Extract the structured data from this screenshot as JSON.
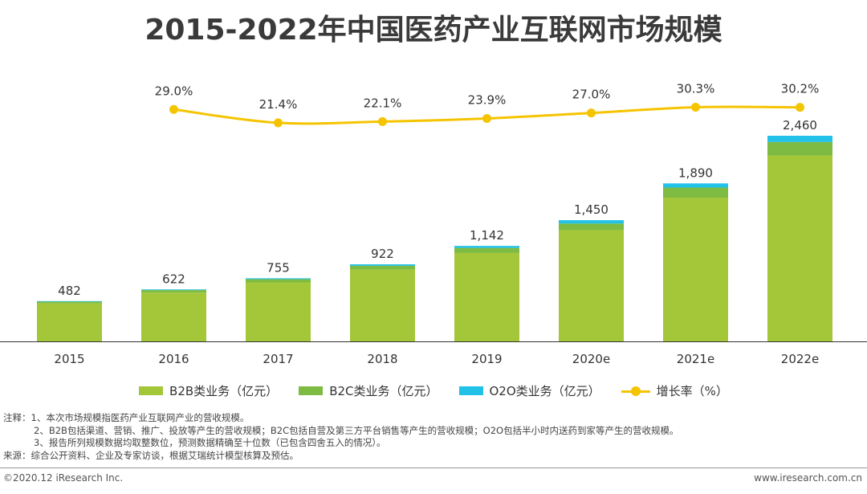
{
  "title": "2015-2022年中国医药产业互联网市场规模",
  "chart_data": {
    "type": "bar",
    "stacked": true,
    "categories": [
      "2015",
      "2016",
      "2017",
      "2018",
      "2019",
      "2020e",
      "2021e",
      "2022e"
    ],
    "series": [
      {
        "name": "B2B类业务（亿元）",
        "color": "#A4C639",
        "values": [
          455,
          584,
          706,
          858,
          1058,
          1330,
          1720,
          2225
        ]
      },
      {
        "name": "B2C类业务（亿元）",
        "color": "#7DBB42",
        "values": [
          20,
          30,
          38,
          46,
          60,
          80,
          120,
          160
        ]
      },
      {
        "name": "O2O类业务（亿元）",
        "color": "#22C1E8",
        "values": [
          7,
          8,
          11,
          18,
          24,
          40,
          50,
          75
        ]
      }
    ],
    "totals": [
      482,
      622,
      755,
      922,
      1142,
      1450,
      1890,
      2460
    ],
    "total_labels": [
      "482",
      "622",
      "755",
      "922",
      "1,142",
      "1,450",
      "1,890",
      "2,460"
    ],
    "line": {
      "name": "增长率（%）",
      "color": "#F5C400",
      "values": [
        29.0,
        21.4,
        22.1,
        23.9,
        27.0,
        30.3,
        30.2
      ],
      "labels": [
        "29.0%",
        "21.4%",
        "22.1%",
        "23.9%",
        "27.0%",
        "30.3%",
        "30.2%"
      ],
      "start_index": 1
    },
    "ylim": [
      0,
      2460
    ],
    "grid": false,
    "legend_position": "bottom"
  },
  "legend": [
    {
      "label": "B2B类业务（亿元）",
      "color": "#A4C639"
    },
    {
      "label": "B2C类业务（亿元）",
      "color": "#7DBB42"
    },
    {
      "label": "O2O类业务（亿元）",
      "color": "#22C1E8"
    },
    {
      "label": "增长率（%）",
      "color": "#F5C400"
    }
  ],
  "notes": {
    "line1": "注释：1、本次市场规模指医药产业互联网产业的营收规模。",
    "line2": "2、B2B包括渠道、营销、推广、投放等产生的营收规模；B2C包括自营及第三方平台销售等产生的营收规模；O2O包括半小时内送药到家等产生的营收规模。",
    "line3": "3、报告所列规模数据均取整数位，预测数据精确至十位数（已包含四舍五入的情况）。",
    "source": "来源：综合公开资料、企业及专家访谈，根据艾瑞统计模型核算及预估。"
  },
  "footer": {
    "left": "©2020.12 iResearch Inc.",
    "right": "www.iresearch.com.cn"
  }
}
